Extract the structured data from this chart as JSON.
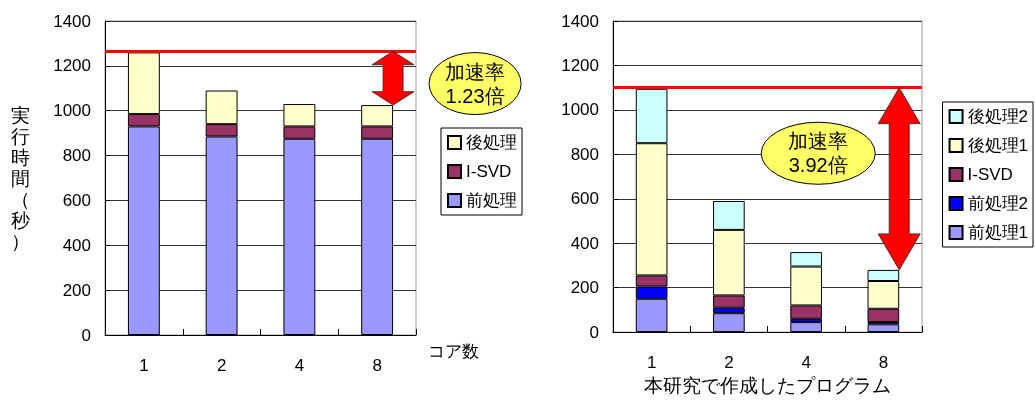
{
  "chart_data": [
    {
      "type": "bar",
      "stacked": true,
      "categories": [
        "1",
        "2",
        "4",
        "8"
      ],
      "series": [
        {
          "name": "前処理",
          "color": "#9999ff",
          "values": [
            930,
            885,
            875,
            875
          ]
        },
        {
          "name": "I-SVD",
          "color": "#993366",
          "values": [
            55,
            55,
            55,
            55
          ]
        },
        {
          "name": "後処理",
          "color": "#ffffcc",
          "values": [
            275,
            150,
            100,
            95
          ]
        }
      ],
      "xlabel": "コア数",
      "ylabel": "実行時間（秒）",
      "ylim": [
        0,
        1400
      ],
      "yticks": [
        0,
        200,
        400,
        600,
        800,
        1000,
        1200,
        1400
      ],
      "grid": "y",
      "legend": "right",
      "ref_lines": [
        {
          "axis": "y",
          "value": 1265,
          "color": "#ff0000"
        }
      ],
      "annotations": [
        "加速率\n1.23倍"
      ]
    },
    {
      "type": "bar",
      "stacked": true,
      "categories": [
        "1",
        "2",
        "4",
        "8"
      ],
      "series": [
        {
          "name": "前処理1",
          "color": "#9999ff",
          "values": [
            150,
            85,
            45,
            35
          ]
        },
        {
          "name": "前処理2",
          "color": "#0000ff",
          "values": [
            55,
            25,
            15,
            10
          ]
        },
        {
          "name": "I-SVD",
          "color": "#993366",
          "values": [
            50,
            55,
            60,
            60
          ]
        },
        {
          "name": "後処理1",
          "color": "#ffffcc",
          "values": [
            595,
            295,
            175,
            125
          ]
        },
        {
          "name": "後処理2",
          "color": "#ccffff",
          "values": [
            245,
            130,
            65,
            50
          ]
        }
      ],
      "xlabel": "本研究で作成したプログラム",
      "ylim": [
        0,
        1400
      ],
      "yticks": [
        0,
        200,
        400,
        600,
        800,
        1000,
        1200,
        1400
      ],
      "grid": "y",
      "legend": "right",
      "ref_lines": [
        {
          "axis": "y",
          "value": 1100,
          "color": "#ff0000"
        }
      ],
      "annotations": [
        "加速率\n3.92倍"
      ]
    }
  ]
}
